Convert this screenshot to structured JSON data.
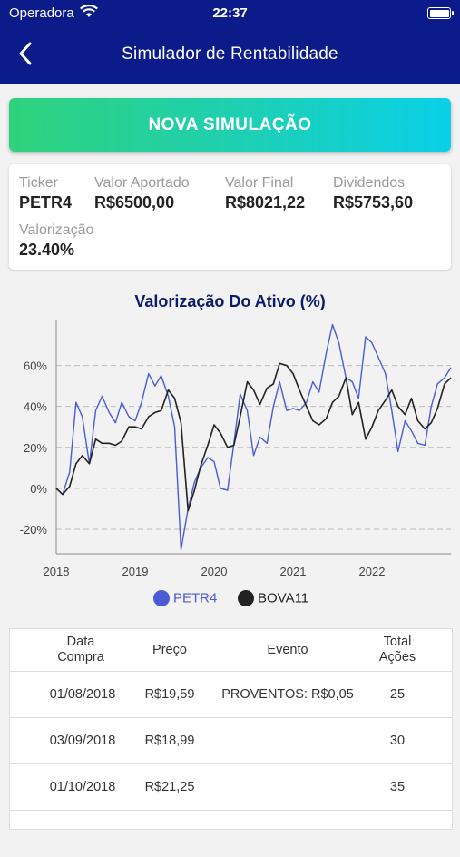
{
  "status_bar": {
    "carrier": "Operadora",
    "time": "22:37"
  },
  "navbar": {
    "title": "Simulador de Rentabilidade"
  },
  "new_simulation": {
    "label": "NOVA SIMULAÇÃO"
  },
  "summary": {
    "ticker": {
      "label": "Ticker",
      "value": "PETR4"
    },
    "valor_aportado": {
      "label": "Valor Aportado",
      "value": "R$6500,00"
    },
    "valor_final": {
      "label": "Valor Final",
      "value": "R$8021,22"
    },
    "dividendos": {
      "label": "Dividendos",
      "value": "R$5753,60"
    },
    "valorizacao": {
      "label": "Valorização",
      "value": "23.40%"
    }
  },
  "colors": {
    "header": "#0b1c8a",
    "petr4": "#4a5bd6",
    "bova11": "#222222",
    "grid": "#bbbbbb"
  },
  "chart_data": {
    "type": "line",
    "title": "Valorização Do Ativo (%)",
    "xlabel": "",
    "ylabel": "",
    "x_tick_labels": [
      "2018",
      "2019",
      "2020",
      "2021",
      "2022"
    ],
    "y_tick_labels": [
      "60%",
      "40%",
      "20%",
      "0%",
      "-20%"
    ],
    "y_ticks": [
      60,
      40,
      20,
      0,
      -20
    ],
    "xlim": [
      2018.0,
      2023.0
    ],
    "ylim": [
      -32,
      82
    ],
    "grid": true,
    "legend": "bottom",
    "series": [
      {
        "name": "PETR4",
        "color": "#4a5bd6",
        "x": [
          2018.0,
          2018.08,
          2018.17,
          2018.25,
          2018.33,
          2018.42,
          2018.5,
          2018.58,
          2018.67,
          2018.75,
          2018.83,
          2018.92,
          2019.0,
          2019.08,
          2019.17,
          2019.25,
          2019.33,
          2019.42,
          2019.5,
          2019.58,
          2019.67,
          2019.75,
          2019.83,
          2019.92,
          2020.0,
          2020.08,
          2020.17,
          2020.25,
          2020.33,
          2020.42,
          2020.5,
          2020.58,
          2020.67,
          2020.75,
          2020.83,
          2020.92,
          2021.0,
          2021.08,
          2021.17,
          2021.25,
          2021.33,
          2021.42,
          2021.5,
          2021.58,
          2021.67,
          2021.75,
          2021.83,
          2021.92,
          2022.0,
          2022.08,
          2022.17,
          2022.25,
          2022.33,
          2022.42,
          2022.5,
          2022.58,
          2022.67,
          2022.75,
          2022.83,
          2022.92,
          2023.0
        ],
        "values": [
          0,
          -3,
          8,
          42,
          35,
          12,
          38,
          45,
          37,
          32,
          42,
          35,
          33,
          42,
          56,
          50,
          55,
          45,
          30,
          -30,
          -10,
          3,
          10,
          15,
          13,
          0,
          -1,
          22,
          46,
          38,
          16,
          25,
          22,
          40,
          52,
          38,
          39,
          38,
          42,
          52,
          47,
          66,
          80,
          71,
          54,
          52,
          44,
          74,
          71,
          64,
          56,
          38,
          18,
          33,
          28,
          22,
          21,
          40,
          51,
          54,
          59
        ]
      },
      {
        "name": "BOVA11",
        "color": "#222222",
        "x": [
          2018.0,
          2018.08,
          2018.17,
          2018.25,
          2018.33,
          2018.42,
          2018.5,
          2018.58,
          2018.67,
          2018.75,
          2018.83,
          2018.92,
          2019.0,
          2019.08,
          2019.17,
          2019.25,
          2019.33,
          2019.42,
          2019.5,
          2019.58,
          2019.67,
          2019.75,
          2019.83,
          2019.92,
          2020.0,
          2020.08,
          2020.17,
          2020.25,
          2020.33,
          2020.42,
          2020.5,
          2020.58,
          2020.67,
          2020.75,
          2020.83,
          2020.92,
          2021.0,
          2021.08,
          2021.17,
          2021.25,
          2021.33,
          2021.42,
          2021.5,
          2021.58,
          2021.67,
          2021.75,
          2021.83,
          2021.92,
          2022.0,
          2022.08,
          2022.17,
          2022.25,
          2022.33,
          2022.42,
          2022.5,
          2022.58,
          2022.67,
          2022.75,
          2022.83,
          2022.92,
          2023.0
        ],
        "values": [
          0,
          -3,
          1,
          12,
          16,
          12,
          24,
          22,
          22,
          21,
          23,
          30,
          30,
          29,
          35,
          37,
          38,
          48,
          44,
          32,
          -11,
          -1,
          11,
          21,
          31,
          27,
          20,
          21,
          35,
          52,
          48,
          41,
          49,
          51,
          61,
          60,
          56,
          48,
          40,
          33,
          31,
          34,
          42,
          45,
          54,
          36,
          42,
          24,
          30,
          38,
          43,
          48,
          40,
          36,
          44,
          33,
          29,
          32,
          39,
          51,
          54
        ]
      }
    ]
  },
  "table": {
    "headers": [
      "Data\nCompra",
      "Preço",
      "Evento",
      "Total\nAções"
    ],
    "rows": [
      [
        "01/08/2018",
        "R$19,59",
        "PROVENTOS: R$0,05",
        "25"
      ],
      [
        "03/09/2018",
        "R$18,99",
        "",
        "30"
      ],
      [
        "01/10/2018",
        "R$21,25",
        "",
        "35"
      ],
      [
        "",
        "",
        "",
        ""
      ]
    ]
  }
}
